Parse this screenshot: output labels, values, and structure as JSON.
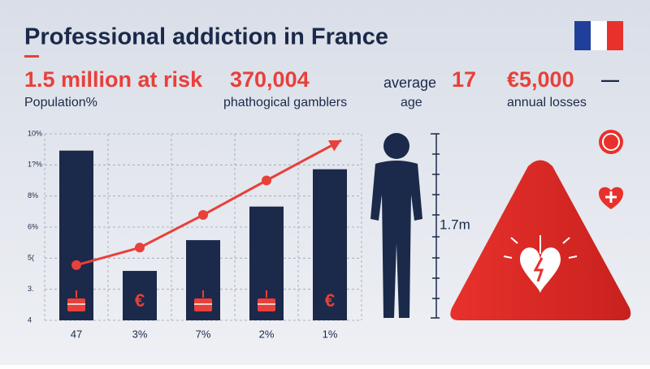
{
  "header": {
    "title": "Professional addiction in France"
  },
  "stats": [
    {
      "value": "1.5 million at risk",
      "label": "Population%"
    },
    {
      "value": "370,004",
      "label": "phathogical gamblers"
    },
    {
      "prefix": "average",
      "value": "17",
      "label": "age"
    },
    {
      "value": "€5,000",
      "suffix": "—",
      "label": "annual losses"
    }
  ],
  "chart_data": {
    "type": "bar",
    "axis_labels": [
      "10%",
      "1?%",
      "8%",
      "6%",
      "5(",
      "3.",
      "4"
    ],
    "categories": [
      "47",
      "3%",
      "7%",
      "2%",
      "1%"
    ],
    "values": [
      9.1,
      2.65,
      4.3,
      6.1,
      8.1
    ],
    "color": "#1b2a4a",
    "line": {
      "color": "#e8403a",
      "values": [
        2.96,
        3.9,
        5.65,
        7.5,
        9.65
      ]
    },
    "ylim": [
      0,
      10
    ],
    "bar_icons": [
      "cake",
      "€",
      "cake",
      "cake",
      "€"
    ]
  },
  "figure": {
    "height_label": "1.7m"
  }
}
